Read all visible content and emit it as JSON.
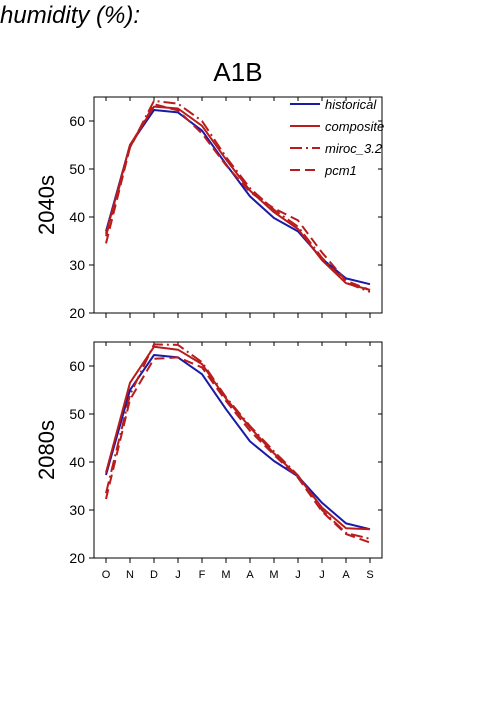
{
  "page": {
    "title_fragment": "humidity (%):"
  },
  "colors": {
    "historical": "#1a1aa8",
    "projection": "#b81c1c"
  },
  "chart_data": {
    "type": "line",
    "title": "A1B",
    "x": [
      "O",
      "N",
      "D",
      "J",
      "F",
      "M",
      "A",
      "M",
      "J",
      "J",
      "A",
      "S"
    ],
    "ylim": [
      20,
      65
    ],
    "yticks": [
      20,
      30,
      40,
      50,
      60
    ],
    "legend": {
      "placement": "top-right",
      "entries": [
        {
          "label": "historical",
          "style": "solid",
          "color": "#1a1aa8"
        },
        {
          "label": "composite",
          "style": "solid",
          "color": "#b81c1c"
        },
        {
          "label": "miroc_3.2",
          "style": "dashdot",
          "color": "#b81c1c"
        },
        {
          "label": "pcm1",
          "style": "dashed",
          "color": "#b81c1c"
        }
      ]
    },
    "panels": [
      {
        "ylabel": "2040s",
        "series": [
          {
            "name": "historical",
            "values": [
              37,
              55,
              62.3,
              61.8,
              58,
              51,
              44.3,
              39.8,
              37,
              31.3,
              27.2,
              26
            ]
          },
          {
            "name": "composite",
            "values": [
              36.5,
              55,
              63,
              62.6,
              59,
              52,
              45.5,
              41,
              37.5,
              31,
              26.2,
              24.8
            ]
          },
          {
            "name": "miroc_3.2",
            "values": [
              36,
              54.5,
              64.2,
              63.6,
              60,
              52.5,
              46,
              41.5,
              38,
              31.5,
              26.3,
              24.4
            ]
          },
          {
            "name": "pcm1",
            "values": [
              34.5,
              54.5,
              63.5,
              62.2,
              57.4,
              50.8,
              45.2,
              41.8,
              39.3,
              32.6,
              26.7,
              24.8
            ]
          }
        ]
      },
      {
        "ylabel": "2080s",
        "series": [
          {
            "name": "historical",
            "values": [
              37.3,
              55,
              62.3,
              61.8,
              58.3,
              51,
              44.3,
              40.2,
              37,
              31.5,
              27.2,
              26
            ]
          },
          {
            "name": "composite",
            "values": [
              37.8,
              56.5,
              64,
              63.4,
              60.4,
              53.2,
              47.2,
              41.8,
              37,
              30.5,
              26.2,
              26
            ]
          },
          {
            "name": "miroc_3.2",
            "values": [
              33.5,
              54,
              64.5,
              64.4,
              60.8,
              53.5,
              47.5,
              42.2,
              37.2,
              30,
              25.2,
              24
            ]
          },
          {
            "name": "pcm1",
            "values": [
              32.3,
              53,
              61.5,
              61.8,
              59.7,
              52.7,
              46.5,
              41.5,
              36.7,
              29.7,
              25,
              23.2
            ]
          }
        ]
      }
    ]
  }
}
